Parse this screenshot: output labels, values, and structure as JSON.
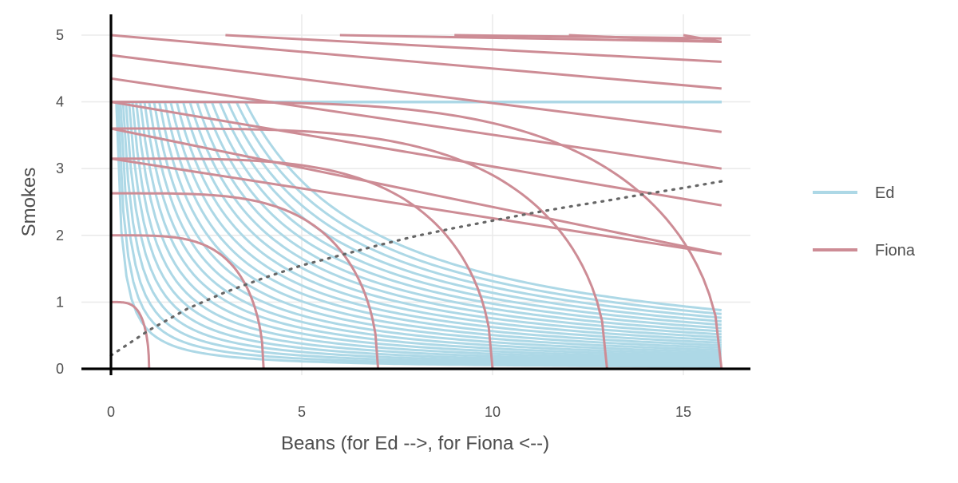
{
  "chart_data": {
    "type": "line",
    "title": "",
    "xlabel": "Beans (for Ed -->, for Fiona <--)",
    "ylabel": "Smokes",
    "xlim": [
      -1.5,
      16.8
    ],
    "ylim": [
      -0.15,
      5.25
    ],
    "xticks": [
      0,
      5,
      10,
      15
    ],
    "yticks": [
      0,
      1,
      2,
      3,
      4,
      5
    ],
    "grid": true,
    "legend_position": "right",
    "colors": {
      "Ed": "#add8e6",
      "Fiona": "#cd8c95",
      "contract_curve": "#666666",
      "axis": "#000000",
      "grid": "#ebebeb"
    },
    "series": [
      {
        "name": "Ed",
        "kind": "indifference_curves",
        "utility_levels": [
          1.5,
          1.75,
          2,
          2.25,
          2.5,
          2.75,
          3,
          3.25,
          3.5,
          3.75,
          4,
          4.25,
          4.5,
          4.75,
          5,
          5.25,
          5.5,
          5.75,
          6,
          6.25,
          6.5,
          6.75,
          7,
          7.25,
          7.5
        ],
        "x_range": [
          0,
          16
        ],
        "y_cap": 4
      },
      {
        "name": "Fiona",
        "kind": "indifference_curves",
        "intercepts_at_x16": [
          0,
          1,
          2,
          3,
          4,
          5,
          6,
          7,
          8,
          9,
          10
        ],
        "x_range": [
          0,
          16
        ]
      },
      {
        "name": "",
        "kind": "contract_curve",
        "style": "dotted",
        "points": [
          [
            0,
            0.2
          ],
          [
            1,
            0.58
          ],
          [
            2,
            0.9
          ],
          [
            3,
            1.15
          ],
          [
            4,
            1.36
          ],
          [
            5,
            1.55
          ],
          [
            6,
            1.7
          ],
          [
            7,
            1.85
          ],
          [
            8,
            1.99
          ],
          [
            9,
            2.11
          ],
          [
            10,
            2.22
          ],
          [
            11,
            2.33
          ],
          [
            12,
            2.43
          ],
          [
            13,
            2.52
          ],
          [
            14,
            2.62
          ],
          [
            15,
            2.71
          ],
          [
            16,
            2.81
          ]
        ]
      }
    ],
    "legend": {
      "items": [
        "Ed",
        "Fiona"
      ]
    }
  }
}
